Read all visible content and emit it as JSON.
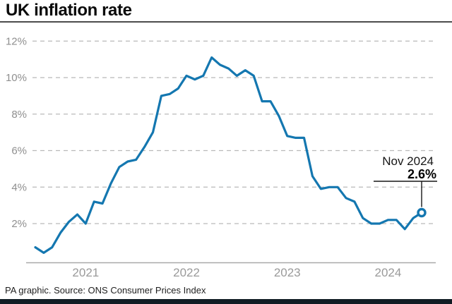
{
  "header": {
    "title": "UK inflation rate"
  },
  "footer": {
    "credit": "PA graphic. Source: ONS Consumer Prices Index"
  },
  "chart_data": {
    "type": "line",
    "title": "UK inflation rate",
    "series_name": "UK CPI annual inflation rate",
    "unit": "%",
    "frequency": "monthly",
    "x_start_month": "Jan 2021",
    "x_end_month": "Nov 2024",
    "values": [
      0.7,
      0.4,
      0.7,
      1.5,
      2.1,
      2.5,
      2.0,
      3.2,
      3.1,
      4.2,
      5.1,
      5.4,
      5.5,
      6.2,
      7.0,
      9.0,
      9.1,
      9.4,
      10.1,
      9.9,
      10.1,
      11.1,
      10.7,
      10.5,
      10.1,
      10.4,
      10.1,
      8.7,
      8.7,
      7.9,
      6.8,
      6.7,
      6.7,
      4.6,
      3.9,
      4.0,
      4.0,
      3.4,
      3.2,
      2.3,
      2.0,
      2.0,
      2.2,
      2.2,
      1.7,
      2.3,
      2.6
    ],
    "x_ticks": [
      {
        "label": "2021",
        "month_index": 6
      },
      {
        "label": "2022",
        "month_index": 18
      },
      {
        "label": "2023",
        "month_index": 30
      },
      {
        "label": "2024",
        "month_index": 42
      }
    ],
    "y_ticks": [
      {
        "label": "12%",
        "value": 12
      },
      {
        "label": "10%",
        "value": 10
      },
      {
        "label": "8%",
        "value": 8
      },
      {
        "label": "6%",
        "value": 6
      },
      {
        "label": "4%",
        "value": 4
      },
      {
        "label": "2%",
        "value": 2
      }
    ],
    "ylim": [
      0,
      12.5
    ],
    "grid": "horizontal-dashed",
    "legend": "none",
    "line_color": "#1477b0",
    "annotation": {
      "label": "Nov 2024",
      "value_label": "2.6%",
      "value": 2.6
    }
  }
}
